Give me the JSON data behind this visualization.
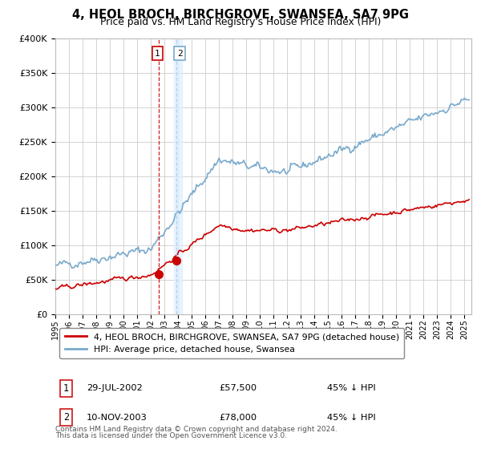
{
  "title": "4, HEOL BROCH, BIRCHGROVE, SWANSEA, SA7 9PG",
  "subtitle": "Price paid vs. HM Land Registry's House Price Index (HPI)",
  "legend_line1": "4, HEOL BROCH, BIRCHGROVE, SWANSEA, SA7 9PG (detached house)",
  "legend_line2": "HPI: Average price, detached house, Swansea",
  "footnote_line1": "Contains HM Land Registry data © Crown copyright and database right 2024.",
  "footnote_line2": "This data is licensed under the Open Government Licence v3.0.",
  "sale1_date": 2002.57,
  "sale1_price": 57500,
  "sale1_display": "29-JUL-2002",
  "sale1_price_str": "£57,500",
  "sale1_hpi": "45% ↓ HPI",
  "sale2_date": 2003.86,
  "sale2_price": 78000,
  "sale2_display": "10-NOV-2003",
  "sale2_price_str": "£78,000",
  "sale2_hpi": "45% ↓ HPI",
  "red_color": "#cc0000",
  "blue_color": "#7aaacc",
  "blue_shade": "#ddeeff",
  "vline_red": "#cc0000",
  "vline_blue": "#aaccee",
  "ylim_max": 400000,
  "xlim_start": 1995.0,
  "xlim_end": 2025.5,
  "bg_color": "#ffffff",
  "grid_color": "#cccccc",
  "yticks": [
    0,
    50000,
    100000,
    150000,
    200000,
    250000,
    300000,
    350000,
    400000
  ],
  "xticks": [
    1995,
    1996,
    1997,
    1998,
    1999,
    2000,
    2001,
    2002,
    2003,
    2004,
    2005,
    2006,
    2007,
    2008,
    2009,
    2010,
    2011,
    2012,
    2013,
    2014,
    2015,
    2016,
    2017,
    2018,
    2019,
    2020,
    2021,
    2022,
    2023,
    2024,
    2025
  ]
}
